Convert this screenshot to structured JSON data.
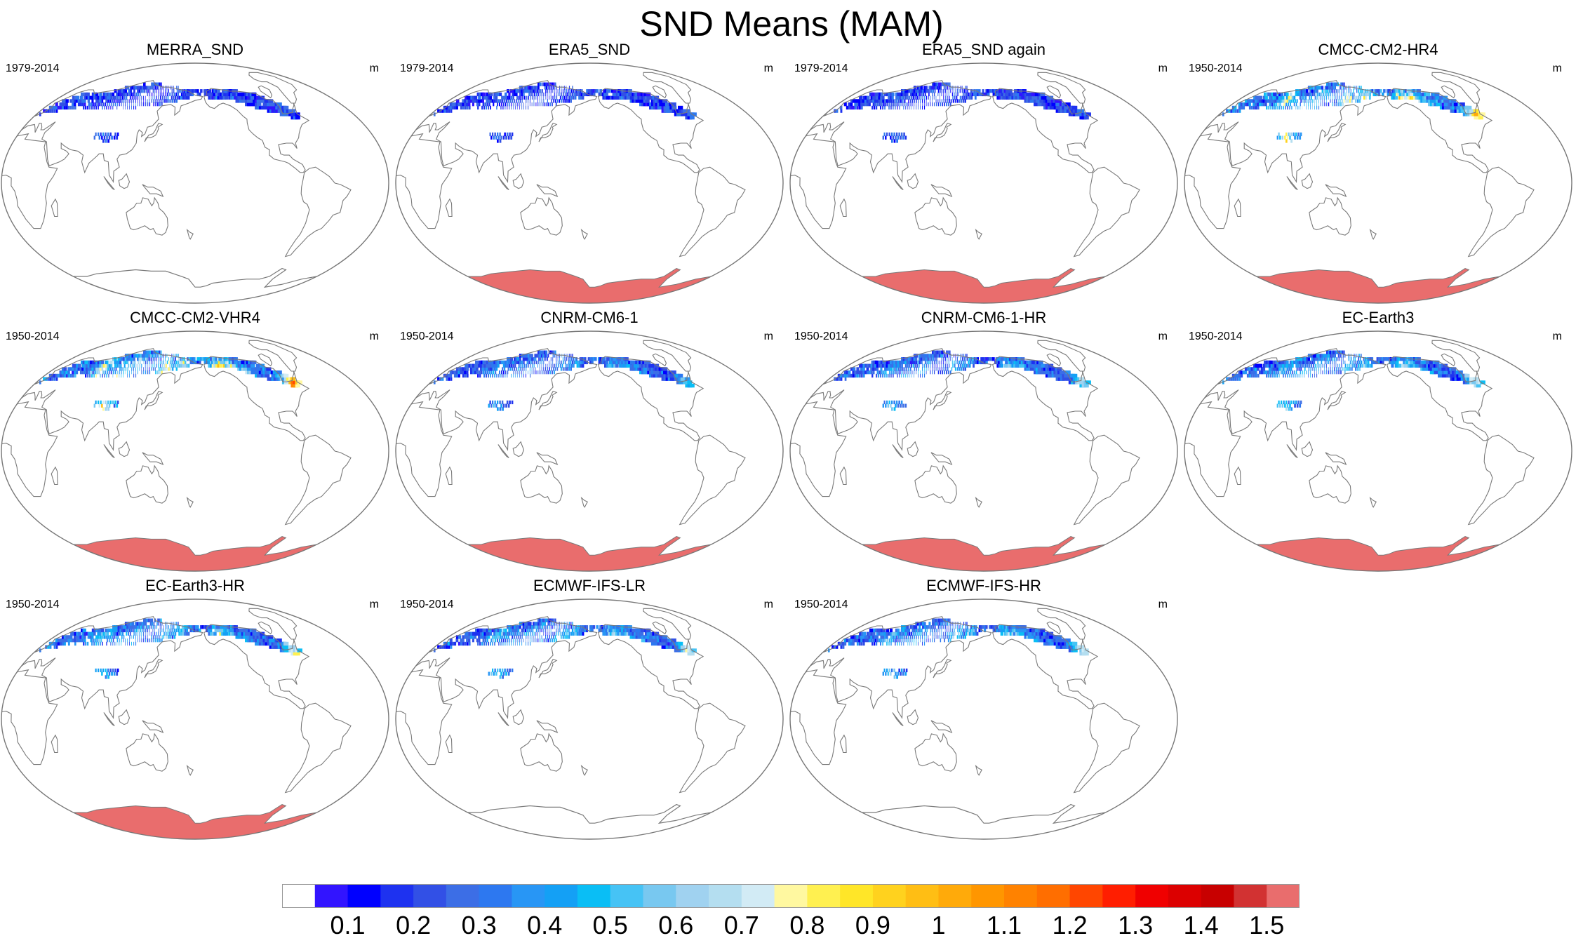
{
  "title": "SND Means (MAM)",
  "colors": {
    "antarctica": "#e96d6d",
    "coastline": "#7a7a7a",
    "border": "#777777",
    "background": "#ffffff"
  },
  "chart_data": {
    "type": "heatmap",
    "title": "SND Means (MAM)",
    "units": "m",
    "projection": "global ellipse map, Pacific-centered",
    "colorbar": {
      "orientation": "horizontal",
      "placement": "bottom",
      "tick_labels": [
        "0.1",
        "0.2",
        "0.3",
        "0.4",
        "0.5",
        "0.6",
        "0.7",
        "0.8",
        "0.9",
        "1",
        "1.1",
        "1.2",
        "1.3",
        "1.4",
        "1.5"
      ],
      "colors": [
        "#ffffff",
        "#3214ff",
        "#0000ff",
        "#1e32f0",
        "#3250e6",
        "#3c6ee6",
        "#2d78f0",
        "#2896f5",
        "#14a0f5",
        "#0abef5",
        "#46c3f5",
        "#78c8f0",
        "#a0d2f0",
        "#b4def0",
        "#d2ebf5",
        "#fff8a0",
        "#fff050",
        "#ffe628",
        "#ffd21e",
        "#ffbe14",
        "#ffaa0a",
        "#ff9600",
        "#ff8200",
        "#ff6e00",
        "#ff4600",
        "#ff1e00",
        "#f00000",
        "#dc0000",
        "#c80000",
        "#d23232",
        "#e96d6d"
      ]
    },
    "panels": [
      {
        "name": "MERRA_SND",
        "period": "1979-2014",
        "units": "m",
        "snow_intensity": 0.05,
        "antarctica_filled": false
      },
      {
        "name": "ERA5_SND",
        "period": "1979-2014",
        "units": "m",
        "snow_intensity": 0.05,
        "antarctica_filled": true
      },
      {
        "name": "ERA5_SND again",
        "period": "1979-2014",
        "units": "m",
        "snow_intensity": 0.05,
        "antarctica_filled": true
      },
      {
        "name": "CMCC-CM2-HR4",
        "period": "1950-2014",
        "units": "m",
        "snow_intensity": 0.7,
        "antarctica_filled": true
      },
      {
        "name": "CMCC-CM2-VHR4",
        "period": "1950-2014",
        "units": "m",
        "snow_intensity": 0.75,
        "antarctica_filled": true
      },
      {
        "name": "CNRM-CM6-1",
        "period": "1950-2014",
        "units": "m",
        "snow_intensity": 0.3,
        "antarctica_filled": true
      },
      {
        "name": "CNRM-CM6-1-HR",
        "period": "1950-2014",
        "units": "m",
        "snow_intensity": 0.35,
        "antarctica_filled": true
      },
      {
        "name": "EC-Earth3",
        "period": "1950-2014",
        "units": "m",
        "snow_intensity": 0.45,
        "antarctica_filled": true
      },
      {
        "name": "EC-Earth3-HR",
        "period": "1950-2014",
        "units": "m",
        "snow_intensity": 0.5,
        "antarctica_filled": true
      },
      {
        "name": "ECMWF-IFS-LR",
        "period": "1950-2014",
        "units": "m",
        "snow_intensity": 0.45,
        "antarctica_filled": false
      },
      {
        "name": "ECMWF-IFS-HR",
        "period": "1950-2014",
        "units": "m",
        "snow_intensity": 0.45,
        "antarctica_filled": false
      }
    ]
  }
}
